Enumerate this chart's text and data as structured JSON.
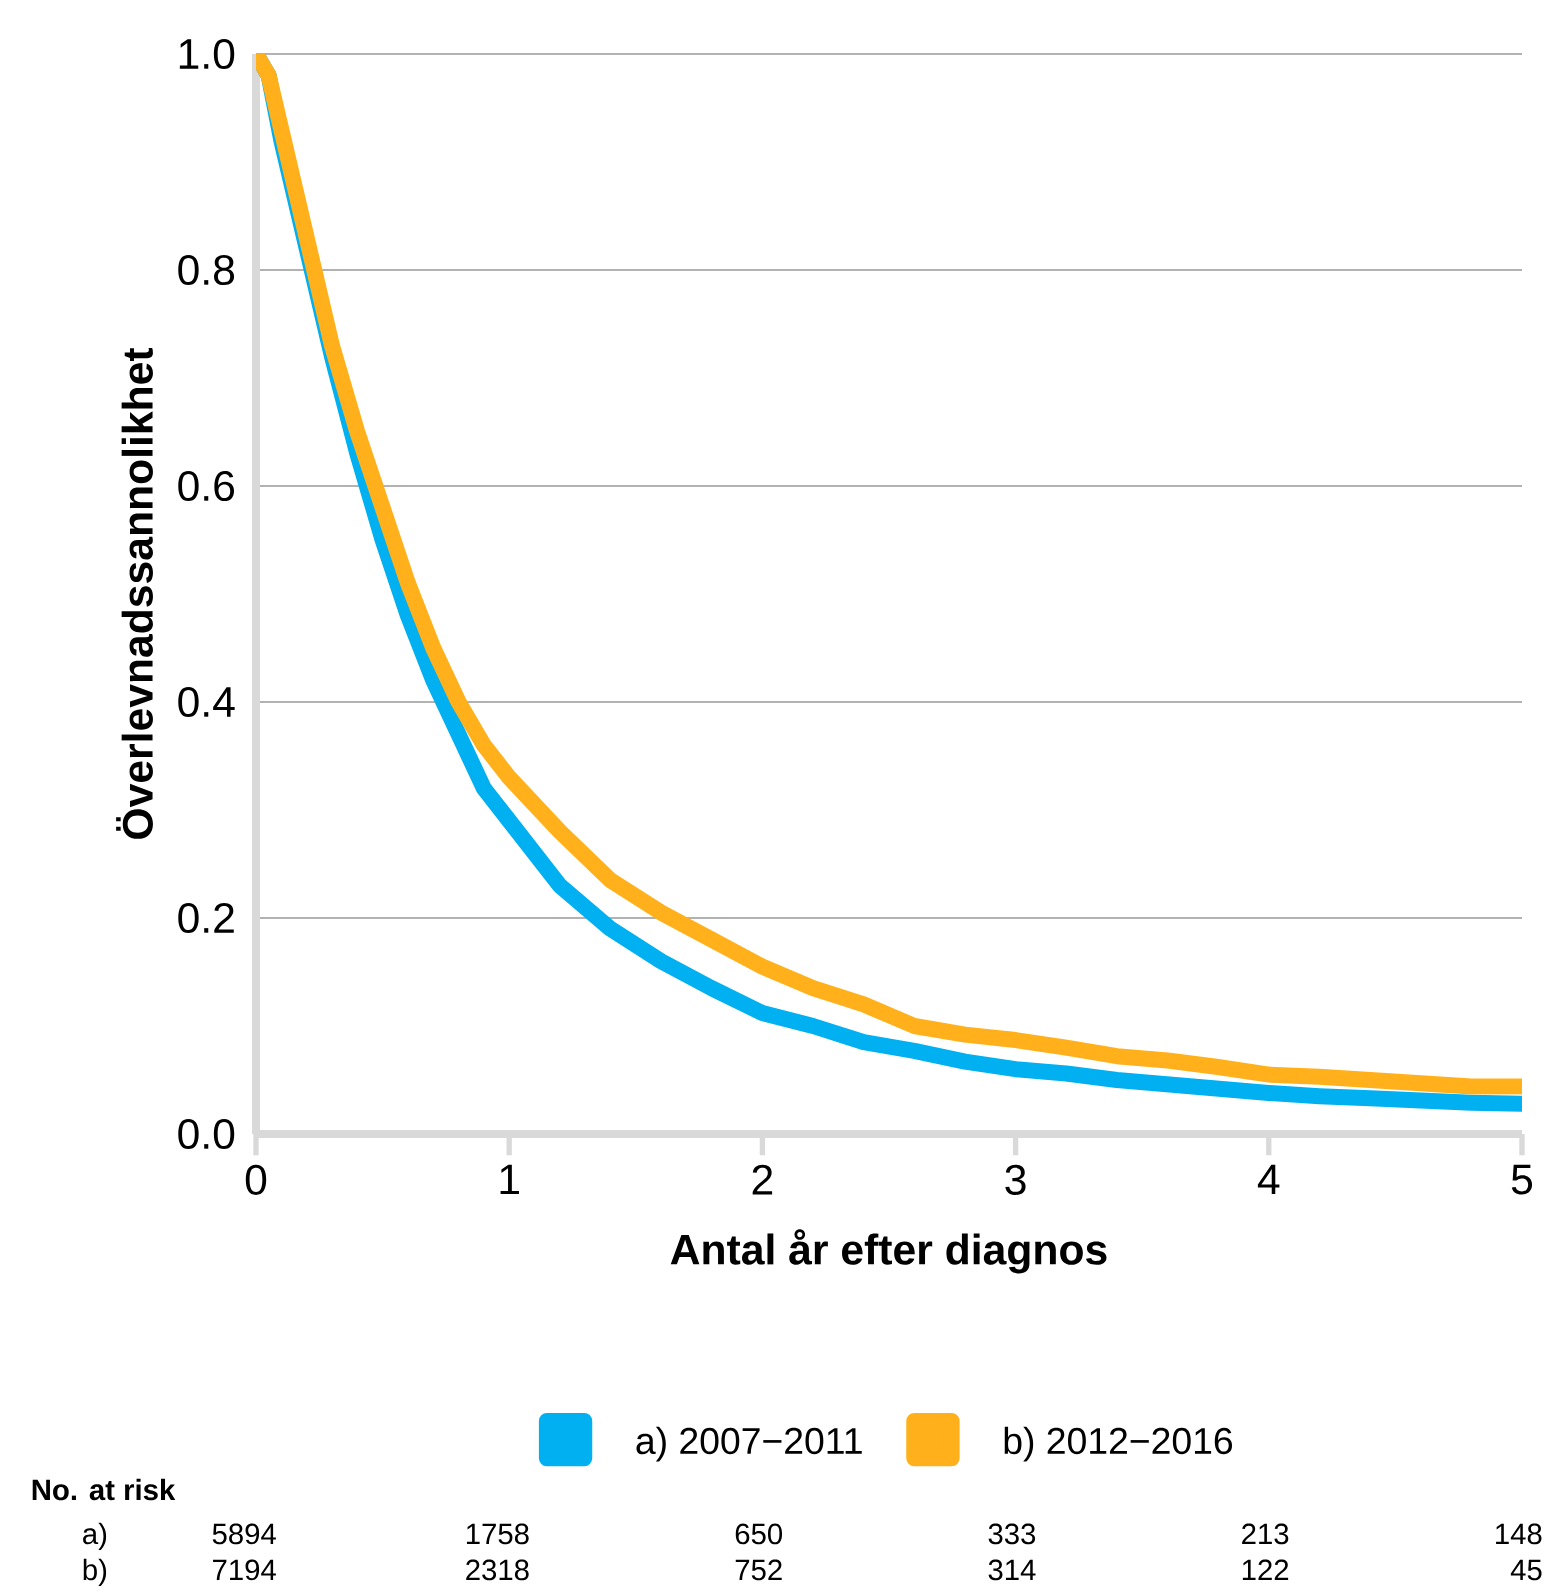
{
  "chart_data": {
    "type": "line",
    "xlabel": "Antal år efter diagnos",
    "ylabel": "Överlevnadssannolikhet",
    "xlim": [
      0,
      5
    ],
    "ylim": [
      0,
      1
    ],
    "xticks": [
      0,
      1,
      2,
      3,
      4,
      5
    ],
    "yticks": [
      {
        "value": 0,
        "label": "0.0"
      },
      {
        "value": 0.2,
        "label": "0.2"
      },
      {
        "value": 0.4,
        "label": "0.4"
      },
      {
        "value": 0.6,
        "label": "0.6"
      },
      {
        "value": 0.8,
        "label": "0.8"
      },
      {
        "value": 1,
        "label": "1.0"
      }
    ],
    "grid": "y",
    "legend": "bottom",
    "x": [
      0,
      0.05,
      0.1,
      0.2,
      0.3,
      0.4,
      0.5,
      0.6,
      0.7,
      0.8,
      0.9,
      1.0,
      1.2,
      1.4,
      1.6,
      1.8,
      2.0,
      2.2,
      2.4,
      2.6,
      2.8,
      3.0,
      3.2,
      3.4,
      3.6,
      3.8,
      4.0,
      4.2,
      4.4,
      4.6,
      4.8,
      5.0
    ],
    "series": [
      {
        "name": "a) 2007−2011",
        "color": "#00b0f0",
        "values": [
          1.0,
          0.98,
          0.92,
          0.82,
          0.72,
          0.63,
          0.55,
          0.48,
          0.42,
          0.37,
          0.32,
          0.29,
          0.23,
          0.19,
          0.16,
          0.135,
          0.112,
          0.1,
          0.085,
          0.077,
          0.067,
          0.06,
          0.056,
          0.05,
          0.046,
          0.042,
          0.038,
          0.035,
          0.033,
          0.031,
          0.029,
          0.028
        ]
      },
      {
        "name": "b) 2012−2016",
        "color": "#ffb01a",
        "values": [
          1.0,
          0.98,
          0.93,
          0.83,
          0.73,
          0.65,
          0.58,
          0.51,
          0.45,
          0.4,
          0.36,
          0.33,
          0.28,
          0.235,
          0.205,
          0.18,
          0.155,
          0.135,
          0.12,
          0.1,
          0.092,
          0.087,
          0.08,
          0.072,
          0.068,
          0.062,
          0.055,
          0.053,
          0.05,
          0.047,
          0.044,
          0.044
        ]
      }
    ],
    "annotations": [
      "No. at risk",
      "a)",
      "5894",
      "1758",
      "650",
      "333",
      "213",
      "148",
      "b)",
      "7194",
      "2318",
      "752",
      "314",
      "122",
      "45"
    ]
  }
}
